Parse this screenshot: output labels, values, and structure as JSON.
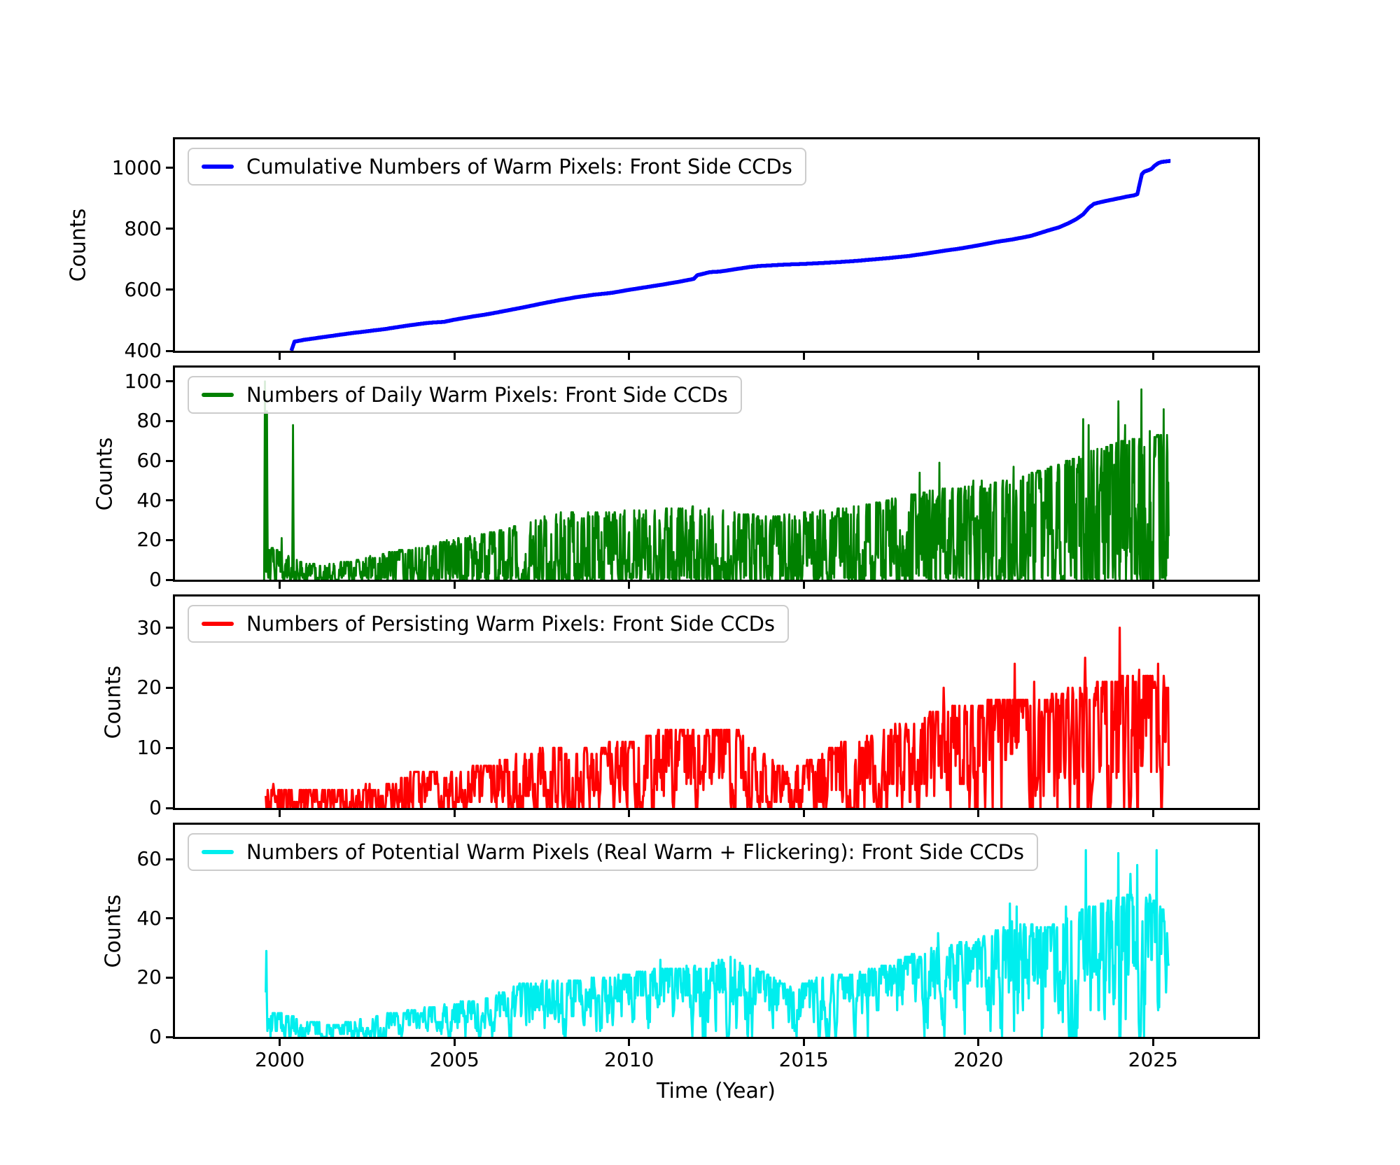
{
  "chart_data": {
    "type": "line",
    "xlabel": "Time (Year)",
    "ylabel": "Counts",
    "xlim": [
      1997.0,
      2028.0
    ],
    "x_ticks": [
      2000,
      2005,
      2010,
      2015,
      2020,
      2025
    ],
    "x_tick_labels": [
      "2000",
      "2005",
      "2010",
      "2015",
      "2020",
      "2025"
    ],
    "grid": false,
    "legend_position": "upper-left",
    "panels": [
      {
        "id": "cumulative",
        "legend": "Cumulative Numbers of Warm Pixels: Front Side CCDs",
        "color": "#0000ff",
        "line_width": 5.5,
        "ylim": [
          400,
          1094
        ],
        "yticks": [
          400,
          600,
          800,
          1000
        ],
        "style": "cumulative",
        "points": [
          [
            2000.33,
            400
          ],
          [
            2000.42,
            430
          ],
          [
            2000.7,
            436
          ],
          [
            2001,
            441
          ],
          [
            2001.5,
            449
          ],
          [
            2002,
            457
          ],
          [
            2002.5,
            464
          ],
          [
            2003,
            471
          ],
          [
            2003.5,
            480
          ],
          [
            2004,
            488
          ],
          [
            2004.3,
            492
          ],
          [
            2004.7,
            495
          ],
          [
            2005,
            502
          ],
          [
            2005.5,
            512
          ],
          [
            2006,
            521
          ],
          [
            2006.5,
            532
          ],
          [
            2007,
            543
          ],
          [
            2007.5,
            555
          ],
          [
            2008,
            566
          ],
          [
            2008.5,
            576
          ],
          [
            2009,
            584
          ],
          [
            2009.5,
            590
          ],
          [
            2010,
            600
          ],
          [
            2010.5,
            609
          ],
          [
            2011,
            618
          ],
          [
            2011.5,
            628
          ],
          [
            2011.85,
            636
          ],
          [
            2011.95,
            648
          ],
          [
            2012.1,
            652
          ],
          [
            2012.3,
            658
          ],
          [
            2012.6,
            660
          ],
          [
            2013,
            667
          ],
          [
            2013.4,
            674
          ],
          [
            2013.7,
            678
          ],
          [
            2014,
            680
          ],
          [
            2014.5,
            683
          ],
          [
            2015,
            685
          ],
          [
            2015.5,
            688
          ],
          [
            2016,
            691
          ],
          [
            2016.5,
            695
          ],
          [
            2017,
            700
          ],
          [
            2017.5,
            705
          ],
          [
            2018,
            711
          ],
          [
            2018.5,
            719
          ],
          [
            2019,
            728
          ],
          [
            2019.5,
            736
          ],
          [
            2020,
            746
          ],
          [
            2020.5,
            757
          ],
          [
            2021,
            766
          ],
          [
            2021.5,
            777
          ],
          [
            2022,
            795
          ],
          [
            2022.3,
            805
          ],
          [
            2022.6,
            820
          ],
          [
            2022.8,
            832
          ],
          [
            2023,
            848
          ],
          [
            2023.15,
            868
          ],
          [
            2023.3,
            882
          ],
          [
            2023.5,
            888
          ],
          [
            2023.7,
            893
          ],
          [
            2024,
            900
          ],
          [
            2024.2,
            905
          ],
          [
            2024.45,
            910
          ],
          [
            2024.55,
            914
          ],
          [
            2024.62,
            950
          ],
          [
            2024.68,
            980
          ],
          [
            2024.75,
            988
          ],
          [
            2024.85,
            992
          ],
          [
            2024.95,
            997
          ],
          [
            2025.05,
            1008
          ],
          [
            2025.15,
            1016
          ],
          [
            2025.25,
            1020
          ],
          [
            2025.5,
            1023
          ]
        ]
      },
      {
        "id": "daily",
        "legend": "Numbers of Daily Warm Pixels: Front Side CCDs",
        "color": "#008000",
        "line_width": 2.8,
        "ylim": [
          0,
          107
        ],
        "yticks": [
          0,
          20,
          40,
          60,
          80,
          100
        ],
        "style": "noisy",
        "start": 1999.55,
        "end": 2025.45,
        "step": 0.012,
        "zero_dips": true,
        "envelope": [
          [
            1999.55,
            3,
            16
          ],
          [
            1999.9,
            3,
            15
          ],
          [
            2000.2,
            2,
            12
          ],
          [
            2000.5,
            2,
            10
          ],
          [
            2000.8,
            1,
            8
          ],
          [
            2001.2,
            0,
            7
          ],
          [
            2002,
            1,
            9
          ],
          [
            2003,
            1,
            13
          ],
          [
            2004,
            2,
            16
          ],
          [
            2005,
            3,
            20
          ],
          [
            2006,
            4,
            23
          ],
          [
            2007,
            5,
            28
          ],
          [
            2008,
            6,
            33
          ],
          [
            2009,
            6,
            33
          ],
          [
            2010,
            6,
            34
          ],
          [
            2011,
            7,
            35
          ],
          [
            2012,
            7,
            36
          ],
          [
            2013,
            6,
            33
          ],
          [
            2014,
            5,
            31
          ],
          [
            2015,
            6,
            33
          ],
          [
            2016,
            6,
            35
          ],
          [
            2017,
            7,
            38
          ],
          [
            2018,
            7,
            42
          ],
          [
            2019,
            8,
            45
          ],
          [
            2020,
            8,
            46
          ],
          [
            2021,
            8,
            50
          ],
          [
            2022,
            8,
            55
          ],
          [
            2023,
            10,
            62
          ],
          [
            2024,
            10,
            68
          ],
          [
            2024.7,
            10,
            70
          ],
          [
            2025.45,
            10,
            72
          ]
        ],
        "spikes": [
          [
            1999.58,
            100
          ],
          [
            1999.63,
            85
          ],
          [
            2000.05,
            21
          ],
          [
            2000.38,
            78
          ],
          [
            2018.32,
            54
          ],
          [
            2018.88,
            59
          ],
          [
            2019.85,
            50
          ],
          [
            2020.1,
            50
          ],
          [
            2021.0,
            57
          ],
          [
            2022.55,
            60
          ],
          [
            2023.0,
            81
          ],
          [
            2023.15,
            78
          ],
          [
            2024.0,
            90
          ],
          [
            2024.2,
            78
          ],
          [
            2024.66,
            96
          ],
          [
            2024.9,
            75
          ],
          [
            2025.3,
            86
          ]
        ]
      },
      {
        "id": "persisting",
        "legend": "Numbers of Persisting Warm Pixels: Front Side CCDs",
        "color": "#ff0000",
        "line_width": 3.2,
        "ylim": [
          0,
          35.2
        ],
        "yticks": [
          0,
          10,
          20,
          30
        ],
        "style": "noisy",
        "start": 1999.6,
        "end": 2025.45,
        "step": 0.018,
        "zero_dips": false,
        "envelope": [
          [
            1999.6,
            0,
            4
          ],
          [
            2000,
            0,
            3
          ],
          [
            2001,
            0,
            3
          ],
          [
            2002,
            0,
            3
          ],
          [
            2003,
            0,
            4
          ],
          [
            2004,
            0,
            6
          ],
          [
            2005,
            1,
            6
          ],
          [
            2006,
            1,
            7
          ],
          [
            2007,
            1,
            9
          ],
          [
            2008,
            2,
            10
          ],
          [
            2009,
            2,
            10
          ],
          [
            2010,
            2,
            11
          ],
          [
            2011,
            2,
            13
          ],
          [
            2012,
            3,
            13
          ],
          [
            2013,
            3,
            13
          ],
          [
            2013.8,
            1,
            9
          ],
          [
            2014.5,
            0,
            6
          ],
          [
            2015,
            0,
            7
          ],
          [
            2015.8,
            1,
            10
          ],
          [
            2016.5,
            2,
            11
          ],
          [
            2017,
            2,
            12
          ],
          [
            2018,
            3,
            14
          ],
          [
            2019,
            3,
            16
          ],
          [
            2020,
            4,
            17
          ],
          [
            2021,
            4,
            18
          ],
          [
            2022,
            4,
            18
          ],
          [
            2023,
            4,
            20
          ],
          [
            2024,
            4,
            21
          ],
          [
            2025,
            5,
            22
          ],
          [
            2025.45,
            5,
            20
          ]
        ],
        "spikes": [
          [
            2005.9,
            7
          ],
          [
            2008.8,
            9
          ],
          [
            2010.6,
            12
          ],
          [
            2012.4,
            13
          ],
          [
            2019.0,
            20
          ],
          [
            2021.03,
            24
          ],
          [
            2021.6,
            21
          ],
          [
            2023.05,
            25
          ],
          [
            2024.05,
            30
          ],
          [
            2024.6,
            23
          ],
          [
            2024.9,
            22
          ],
          [
            2025.15,
            24
          ],
          [
            2025.3,
            22
          ]
        ]
      },
      {
        "id": "potential",
        "legend": "Numbers of Potential Warm Pixels (Real Warm + Flickering): Front Side CCDs",
        "color": "#00eeee",
        "line_width": 3.2,
        "ylim": [
          0,
          71.6
        ],
        "yticks": [
          0,
          20,
          40,
          60
        ],
        "style": "noisy",
        "start": 1999.6,
        "end": 2025.45,
        "step": 0.015,
        "zero_dips": false,
        "envelope": [
          [
            1999.6,
            2,
            8
          ],
          [
            2000,
            2,
            8
          ],
          [
            2000.8,
            1,
            5
          ],
          [
            2001.5,
            0,
            4
          ],
          [
            2002,
            1,
            5
          ],
          [
            2002.8,
            3,
            7
          ],
          [
            2003.5,
            4,
            8
          ],
          [
            2004.3,
            5,
            10
          ],
          [
            2005,
            5,
            11
          ],
          [
            2006,
            6,
            13
          ],
          [
            2006.8,
            9,
            17
          ],
          [
            2007.5,
            10,
            19
          ],
          [
            2008.5,
            11,
            19
          ],
          [
            2009.5,
            12,
            20
          ],
          [
            2010.5,
            13,
            22
          ],
          [
            2011.5,
            13,
            23
          ],
          [
            2012.5,
            14,
            25
          ],
          [
            2013.2,
            14,
            26
          ],
          [
            2014,
            10,
            20
          ],
          [
            2014.7,
            8,
            16
          ],
          [
            2015.5,
            11,
            20
          ],
          [
            2016.5,
            12,
            21
          ],
          [
            2017.5,
            13,
            24
          ],
          [
            2018.3,
            15,
            28
          ],
          [
            2019,
            16,
            30
          ],
          [
            2020,
            17,
            32
          ],
          [
            2021,
            18,
            38
          ],
          [
            2022,
            16,
            36
          ],
          [
            2023,
            20,
            42
          ],
          [
            2024,
            22,
            46
          ],
          [
            2024.8,
            22,
            48
          ],
          [
            2025.45,
            24,
            40
          ]
        ],
        "spikes": [
          [
            1999.62,
            29
          ],
          [
            2010.9,
            26
          ],
          [
            2012.9,
            27
          ],
          [
            2018.85,
            35
          ],
          [
            2020.9,
            45
          ],
          [
            2021.1,
            44
          ],
          [
            2022.5,
            44
          ],
          [
            2023.08,
            63
          ],
          [
            2024.0,
            62
          ],
          [
            2024.35,
            55
          ],
          [
            2024.55,
            58
          ],
          [
            2025.1,
            63
          ]
        ]
      }
    ]
  }
}
